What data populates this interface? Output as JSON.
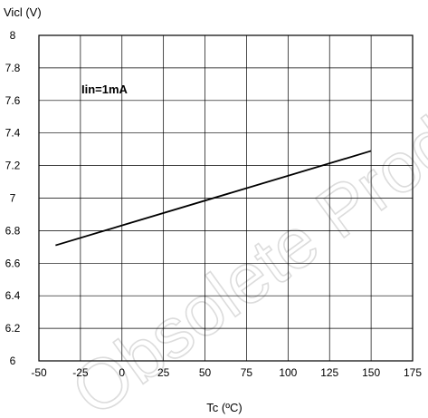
{
  "chart_data": {
    "type": "line",
    "ylabel": "Vicl (V)",
    "xlabel": "Tc (ºC)",
    "annotation": "Iin=1mA",
    "watermark": "Obsolete Product(s)",
    "xlim": [
      -50,
      175
    ],
    "ylim": [
      6,
      8
    ],
    "x_ticks": [
      -50,
      -25,
      0,
      25,
      50,
      75,
      100,
      125,
      150,
      175
    ],
    "y_ticks": [
      6,
      6.2,
      6.4,
      6.6,
      6.8,
      7,
      7.2,
      7.4,
      7.6,
      7.8,
      8
    ],
    "grid": true,
    "series": [
      {
        "x": [
          -40,
          150
        ],
        "y": [
          6.71,
          7.29
        ]
      }
    ]
  }
}
